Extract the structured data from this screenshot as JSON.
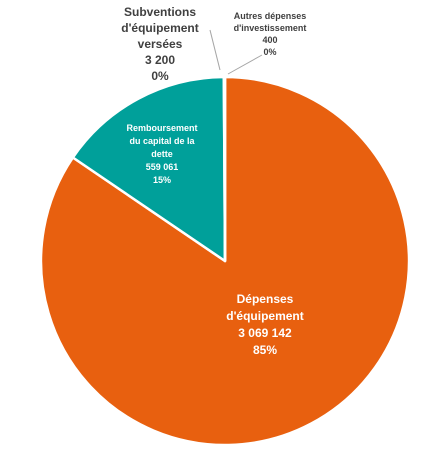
{
  "chart_data": {
    "type": "pie",
    "title": "",
    "slices": [
      {
        "name": "Dépenses d'équipement",
        "value": 3069142,
        "value_label": "3 069 142",
        "percent_label": "85%",
        "color": "#E8600F",
        "label_lines": [
          "Dépenses",
          "d'équipement"
        ]
      },
      {
        "name": "Remboursement du capital de la dette",
        "value": 559061,
        "value_label": "559 061",
        "percent_label": "15%",
        "color": "#00A09A",
        "label_lines": [
          "Remboursement",
          "du capital de la",
          "dette"
        ]
      },
      {
        "name": "Subventions d'équipement versées",
        "value": 3200,
        "value_label": "3 200",
        "percent_label": "0%",
        "color": "#7F7F7F",
        "label_lines": [
          "Subventions",
          "d'équipement",
          "versées"
        ]
      },
      {
        "name": "Autres dépenses d'investissement",
        "value": 400,
        "value_label": "400",
        "percent_label": "0%",
        "color": "#A5A5A5",
        "label_lines": [
          "Autres dépenses",
          "d'investissement"
        ]
      }
    ],
    "legend": "none",
    "labels": "data labels on/beside slices"
  }
}
